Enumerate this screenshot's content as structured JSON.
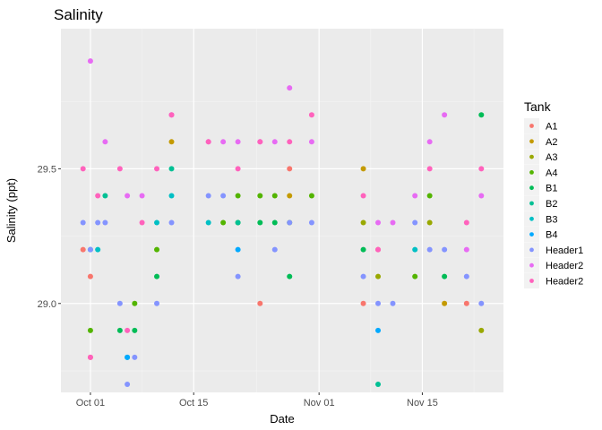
{
  "chart_data": {
    "type": "scatter",
    "title": "Salinity",
    "xlabel": "Date",
    "ylabel": "Salinity (ppt)",
    "x_range": [
      "2017-09-27",
      "2017-11-26"
    ],
    "y_range": [
      28.67,
      30.02
    ],
    "x_ticks": [
      {
        "date": "2017-10-01",
        "label": "Oct 01"
      },
      {
        "date": "2017-10-15",
        "label": "Oct 15"
      },
      {
        "date": "2017-11-01",
        "label": "Nov 01"
      },
      {
        "date": "2017-11-15",
        "label": "Nov 15"
      }
    ],
    "y_ticks": [
      {
        "value": 29.0,
        "label": "29.0"
      },
      {
        "value": 29.5,
        "label": "29.5"
      }
    ],
    "grid": true,
    "legend": {
      "title": "Tank",
      "placement": "right"
    },
    "series": [
      {
        "name": "A1",
        "color": "#F8766D",
        "points": [
          [
            "2017-09-30",
            29.2
          ],
          [
            "2017-10-01",
            29.1
          ],
          [
            "2017-10-01",
            28.8
          ],
          [
            "2017-10-24",
            29.0
          ],
          [
            "2017-10-28",
            29.5
          ],
          [
            "2017-11-07",
            29.0
          ],
          [
            "2017-11-09",
            29.2
          ],
          [
            "2017-11-21",
            29.0
          ]
        ]
      },
      {
        "name": "A2",
        "color": "#C49A00",
        "points": [
          [
            "2017-10-12",
            29.6
          ],
          [
            "2017-10-28",
            29.4
          ],
          [
            "2017-11-07",
            29.5
          ],
          [
            "2017-11-18",
            29.0
          ]
        ]
      },
      {
        "name": "A3",
        "color": "#99A800",
        "points": [
          [
            "2017-11-07",
            29.3
          ],
          [
            "2017-11-09",
            29.1
          ],
          [
            "2017-11-16",
            29.3
          ],
          [
            "2017-11-23",
            28.9
          ]
        ]
      },
      {
        "name": "A4",
        "color": "#53B400",
        "points": [
          [
            "2017-10-01",
            28.9
          ],
          [
            "2017-10-07",
            29.0
          ],
          [
            "2017-10-10",
            29.2
          ],
          [
            "2017-10-19",
            29.3
          ],
          [
            "2017-10-21",
            29.3
          ],
          [
            "2017-10-21",
            29.4
          ],
          [
            "2017-10-24",
            29.4
          ],
          [
            "2017-10-26",
            29.4
          ],
          [
            "2017-10-28",
            29.3
          ],
          [
            "2017-10-31",
            29.4
          ],
          [
            "2017-11-14",
            29.1
          ],
          [
            "2017-11-16",
            29.4
          ]
        ]
      },
      {
        "name": "B1",
        "color": "#00BC56",
        "points": [
          [
            "2017-10-05",
            28.9
          ],
          [
            "2017-10-07",
            28.9
          ],
          [
            "2017-10-10",
            29.1
          ],
          [
            "2017-10-24",
            29.3
          ],
          [
            "2017-10-26",
            29.3
          ],
          [
            "2017-10-28",
            29.1
          ],
          [
            "2017-11-07",
            29.2
          ],
          [
            "2017-11-18",
            29.1
          ],
          [
            "2017-11-23",
            29.7
          ]
        ]
      },
      {
        "name": "B2",
        "color": "#00C094",
        "points": [
          [
            "2017-10-03",
            29.4
          ],
          [
            "2017-10-12",
            29.5
          ],
          [
            "2017-10-21",
            29.3
          ],
          [
            "2017-11-09",
            28.7
          ]
        ]
      },
      {
        "name": "B3",
        "color": "#00BFC4",
        "points": [
          [
            "2017-10-02",
            29.2
          ],
          [
            "2017-10-06",
            28.8
          ],
          [
            "2017-10-10",
            29.3
          ],
          [
            "2017-10-12",
            29.4
          ],
          [
            "2017-10-17",
            29.3
          ],
          [
            "2017-11-14",
            29.2
          ]
        ]
      },
      {
        "name": "B4",
        "color": "#00A9FF",
        "points": [
          [
            "2017-10-01",
            29.2
          ],
          [
            "2017-10-06",
            28.8
          ],
          [
            "2017-10-21",
            29.2
          ],
          [
            "2017-11-09",
            28.9
          ]
        ]
      },
      {
        "name": "Header1",
        "color": "#8494FF",
        "points": [
          [
            "2017-09-30",
            29.3
          ],
          [
            "2017-10-01",
            29.2
          ],
          [
            "2017-10-02",
            29.3
          ],
          [
            "2017-10-03",
            29.3
          ],
          [
            "2017-10-05",
            29.0
          ],
          [
            "2017-10-06",
            28.7
          ],
          [
            "2017-10-07",
            28.8
          ],
          [
            "2017-10-10",
            29.0
          ],
          [
            "2017-10-12",
            29.3
          ],
          [
            "2017-10-17",
            29.4
          ],
          [
            "2017-10-19",
            29.4
          ],
          [
            "2017-10-21",
            29.1
          ],
          [
            "2017-10-26",
            29.2
          ],
          [
            "2017-10-28",
            29.3
          ],
          [
            "2017-10-31",
            29.3
          ],
          [
            "2017-11-07",
            29.1
          ],
          [
            "2017-11-09",
            29.0
          ],
          [
            "2017-11-11",
            29.0
          ],
          [
            "2017-11-14",
            29.3
          ],
          [
            "2017-11-16",
            29.2
          ],
          [
            "2017-11-18",
            29.2
          ],
          [
            "2017-11-21",
            29.1
          ],
          [
            "2017-11-23",
            29.0
          ]
        ]
      },
      {
        "name": "Header2",
        "color": "#E76BF3",
        "points": [
          [
            "2017-10-01",
            29.9
          ],
          [
            "2017-10-03",
            29.6
          ],
          [
            "2017-10-06",
            29.4
          ],
          [
            "2017-10-08",
            29.4
          ],
          [
            "2017-10-12",
            29.7
          ],
          [
            "2017-10-17",
            29.6
          ],
          [
            "2017-10-19",
            29.6
          ],
          [
            "2017-10-21",
            29.6
          ],
          [
            "2017-10-24",
            29.6
          ],
          [
            "2017-10-26",
            29.6
          ],
          [
            "2017-10-28",
            29.8
          ],
          [
            "2017-10-31",
            29.6
          ],
          [
            "2017-11-09",
            29.3
          ],
          [
            "2017-11-11",
            29.3
          ],
          [
            "2017-11-14",
            29.4
          ],
          [
            "2017-11-16",
            29.6
          ],
          [
            "2017-11-18",
            29.7
          ],
          [
            "2017-11-21",
            29.2
          ],
          [
            "2017-11-23",
            29.4
          ]
        ]
      },
      {
        "name": "Header2",
        "color": "#FF62BC",
        "points": [
          [
            "2017-09-30",
            29.5
          ],
          [
            "2017-10-01",
            28.8
          ],
          [
            "2017-10-02",
            29.4
          ],
          [
            "2017-10-05",
            29.5
          ],
          [
            "2017-10-06",
            28.9
          ],
          [
            "2017-10-08",
            29.3
          ],
          [
            "2017-10-10",
            29.5
          ],
          [
            "2017-10-12",
            29.7
          ],
          [
            "2017-10-17",
            29.6
          ],
          [
            "2017-10-21",
            29.5
          ],
          [
            "2017-10-24",
            29.6
          ],
          [
            "2017-10-28",
            29.6
          ],
          [
            "2017-10-31",
            29.7
          ],
          [
            "2017-11-07",
            29.4
          ],
          [
            "2017-11-09",
            29.2
          ],
          [
            "2017-11-16",
            29.5
          ],
          [
            "2017-11-21",
            29.3
          ],
          [
            "2017-11-23",
            29.5
          ]
        ]
      }
    ]
  }
}
